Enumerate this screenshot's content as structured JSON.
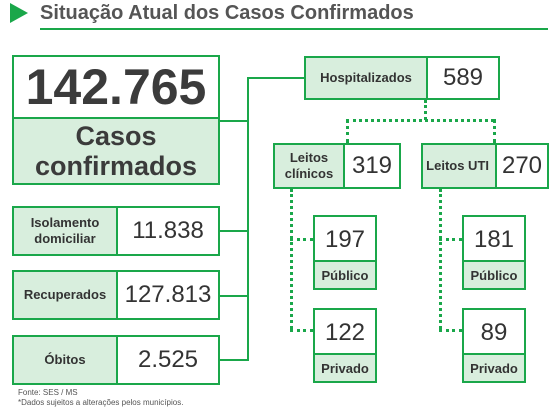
{
  "header": {
    "title": "Situação Atual dos Casos Confirmados",
    "icon": "play-arrow-icon"
  },
  "total": {
    "value": "142.765",
    "label": "Casos confirmados"
  },
  "left_cards": [
    {
      "label": "Isolamento domiciliar",
      "value": "11.838"
    },
    {
      "label": "Recuperados",
      "value": "127.813"
    },
    {
      "label": "Óbitos",
      "value": "2.525"
    }
  ],
  "hospitalizados": {
    "label": "Hospitalizados",
    "value": "589"
  },
  "leitos_clinicos": {
    "label": "Leitos clínicos",
    "value": "319",
    "publico": {
      "label": "Público",
      "value": "197"
    },
    "privado": {
      "label": "Privado",
      "value": "122"
    }
  },
  "leitos_uti": {
    "label": "Leitos UTI",
    "value": "270",
    "publico": {
      "label": "Público",
      "value": "181"
    },
    "privado": {
      "label": "Privado",
      "value": "89"
    }
  },
  "footer": {
    "source": "Fonte: SES / MS",
    "note": "*Dados sujeitos a alterações pelos municípios."
  },
  "colors": {
    "accent": "#1aa74a",
    "label_fill": "#d8eedd",
    "text": "#333333"
  }
}
